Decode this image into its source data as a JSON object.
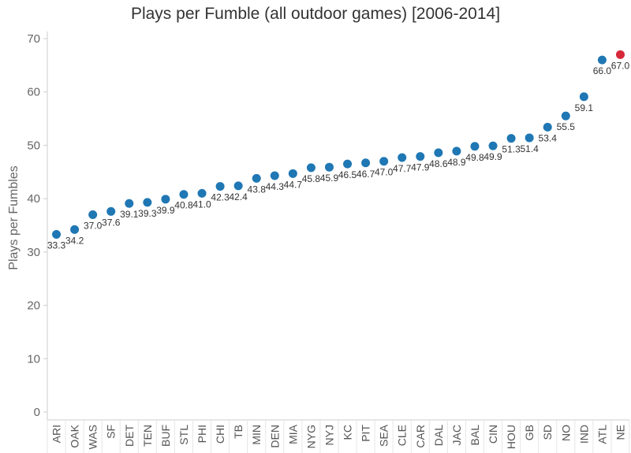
{
  "chart_data": {
    "type": "scatter",
    "title": "Plays per Fumble (all outdoor games) [2006-2014]",
    "ylabel": "Plays per Fumbles",
    "xlabel": "",
    "ylim": [
      0,
      70
    ],
    "yticks": [
      0,
      10,
      20,
      30,
      40,
      50,
      60,
      70
    ],
    "grid": false,
    "categories": [
      "ARI",
      "OAK",
      "WAS",
      "SF",
      "DET",
      "TEN",
      "BUF",
      "STL",
      "PHI",
      "CHI",
      "TB",
      "MIN",
      "DEN",
      "MIA",
      "NYG",
      "NYJ",
      "KC",
      "PIT",
      "SEA",
      "CLE",
      "CAR",
      "DAL",
      "JAC",
      "BAL",
      "CIN",
      "HOU",
      "GB",
      "SD",
      "NO",
      "IND",
      "ATL",
      "NE"
    ],
    "series": [
      {
        "values": [
          33.3,
          34.2,
          37.0,
          37.6,
          39.1,
          39.3,
          39.9,
          40.8,
          41.0,
          42.3,
          42.4,
          43.8,
          44.3,
          44.7,
          45.8,
          45.9,
          46.5,
          46.7,
          47.0,
          47.7,
          47.9,
          48.6,
          48.9,
          49.8,
          49.9,
          51.3,
          51.4,
          53.4,
          55.5,
          59.1,
          66.0,
          67.0
        ],
        "labels": [
          "33.3",
          "34.2",
          "37.0",
          "37.6",
          "39.1",
          "39.3",
          "39.9",
          "40.8",
          "41.0",
          "42.3",
          "42.4",
          "43.8",
          "44.3",
          "44.7",
          "45.8",
          "45.9",
          "46.5",
          "46.7",
          "47.0",
          "47.7",
          "47.9",
          "48.6",
          "48.9",
          "49.8",
          "49.9",
          "51.3",
          "51.4",
          "53.4",
          "55.5",
          "59.1",
          "66.0",
          "67.0"
        ]
      }
    ],
    "highlight_index": 31,
    "colors": {
      "point": "#1f77b4",
      "highlight": "#d62839",
      "axis": "#cccccc",
      "separator": "#e6e6e6"
    }
  }
}
